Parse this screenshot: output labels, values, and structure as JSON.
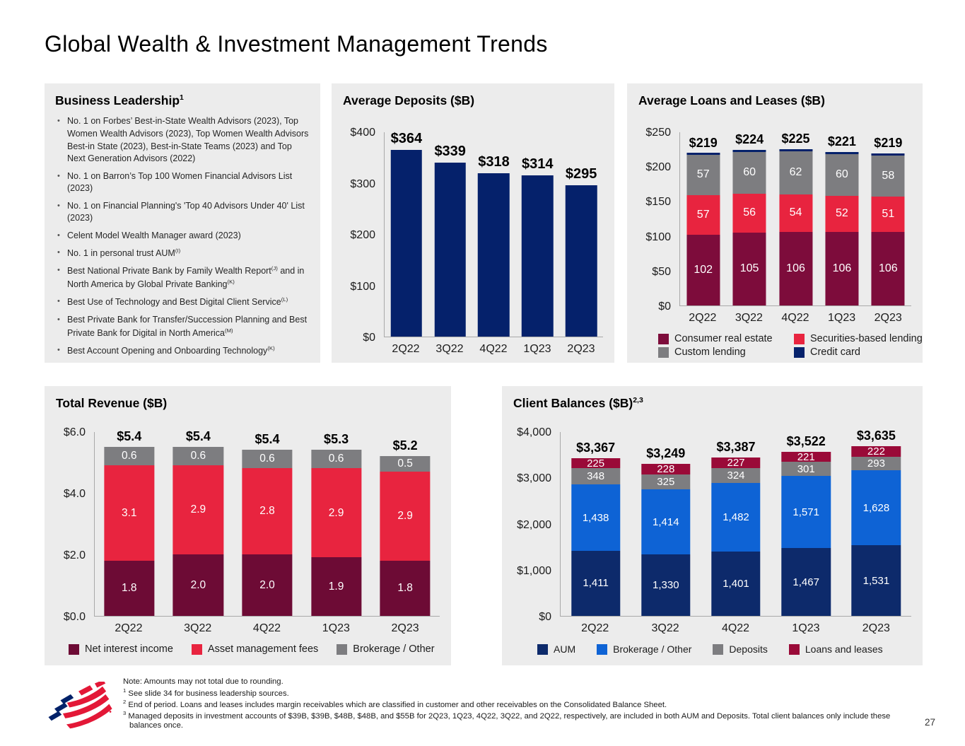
{
  "page": {
    "title": "Global Wealth & Investment Management Trends",
    "page_number": "27",
    "logo": "bank-of-america-flag-logo"
  },
  "colors": {
    "navy": "#05216b",
    "navy_aum": "#0d2a6b",
    "blue": "#0e63d5",
    "red": "#e8243f",
    "maroon": "#7d0c3b",
    "maroon_dark": "#6d0b35",
    "maroon_bright": "#9a0a38",
    "gray": "#7d7d80",
    "logo_red": "#e31837",
    "logo_blue": "#012169"
  },
  "business_leadership": {
    "title": "Business Leadership^{1}",
    "bullets": [
      "No. 1 on Forbes’ Best-in-State Wealth Advisors (2023), Top Women Wealth Advisors (2023), Top Women Wealth Advisors Best-in State (2023), Best-in-State Teams (2023) and Top Next Generation Advisors (2022)",
      "No. 1 on Barron’s Top 100 Women Financial Advisors List (2023)",
      "No. 1 on Financial Planning's 'Top 40 Advisors Under 40' List (2023)",
      "Celent Model Wealth Manager award (2023)",
      "No. 1 in personal trust AUM^{(I)}",
      "Best National Private Bank by Family Wealth Report^{(J)} and in North America by Global Private Banking^{(K)}",
      "Best Use of Technology and Best Digital Client Service^{(L)}",
      "Best Private Bank for Transfer/Succession Planning and Best Private Bank for Digital in North America^{(M)}",
      "Best Account Opening and Onboarding Technology^{(K)}"
    ]
  },
  "chart_data": [
    {
      "id": "average_deposits",
      "type": "bar",
      "title": "Average Deposits ($B)",
      "categories": [
        "2Q22",
        "3Q22",
        "4Q22",
        "1Q23",
        "2Q23"
      ],
      "values": [
        364,
        339,
        318,
        314,
        295
      ],
      "value_labels": [
        "$364",
        "$339",
        "$318",
        "$314",
        "$295"
      ],
      "color": "navy",
      "ylim": [
        0,
        400
      ],
      "yticks": [
        {
          "v": 0,
          "t": "$0"
        },
        {
          "v": 100,
          "t": "$100"
        },
        {
          "v": 200,
          "t": "$200"
        },
        {
          "v": 300,
          "t": "$300"
        },
        {
          "v": 400,
          "t": "$400"
        }
      ],
      "grid": false,
      "legend_position": "none"
    },
    {
      "id": "average_loans",
      "type": "stacked-bar",
      "title": "Average Loans and Leases ($B)",
      "categories": [
        "2Q22",
        "3Q22",
        "4Q22",
        "1Q23",
        "2Q23"
      ],
      "totals": [
        "$219",
        "$224",
        "$225",
        "$221",
        "$219"
      ],
      "series": [
        {
          "name": "Consumer real estate",
          "color": "maroon",
          "values": [
            102,
            105,
            106,
            106,
            106
          ],
          "labels": [
            "102",
            "105",
            "106",
            "106",
            "106"
          ]
        },
        {
          "name": "Securities-based lending",
          "color": "red",
          "values": [
            57,
            56,
            54,
            52,
            51
          ],
          "labels": [
            "57",
            "56",
            "54",
            "52",
            "51"
          ]
        },
        {
          "name": "Custom lending",
          "color": "gray",
          "values": [
            57,
            60,
            62,
            60,
            58
          ],
          "labels": [
            "57",
            "60",
            "62",
            "60",
            "58"
          ]
        },
        {
          "name": "Credit card",
          "color": "navy",
          "values": [
            3,
            3,
            3,
            3,
            4
          ]
        }
      ],
      "ylim": [
        0,
        250
      ],
      "yticks": [
        {
          "v": 0,
          "t": "$0"
        },
        {
          "v": 50,
          "t": "$50"
        },
        {
          "v": 100,
          "t": "$100"
        },
        {
          "v": 150,
          "t": "$150"
        },
        {
          "v": 200,
          "t": "$200"
        },
        {
          "v": 250,
          "t": "$250"
        }
      ],
      "grid": false,
      "legend_position": "bottom-grid"
    },
    {
      "id": "total_revenue",
      "type": "stacked-bar",
      "title": "Total Revenue ($B)",
      "categories": [
        "2Q22",
        "3Q22",
        "4Q22",
        "1Q23",
        "2Q23"
      ],
      "totals": [
        "$5.4",
        "$5.4",
        "$5.4",
        "$5.3",
        "$5.2"
      ],
      "series": [
        {
          "name": "Net interest income",
          "color": "maroon_dark",
          "values": [
            1.8,
            2.0,
            2.0,
            1.9,
            1.8
          ],
          "labels": [
            "1.8",
            "2.0",
            "2.0",
            "1.9",
            "1.8"
          ]
        },
        {
          "name": "Asset management fees",
          "color": "red",
          "values": [
            3.1,
            2.9,
            2.8,
            2.9,
            2.9
          ],
          "labels": [
            "3.1",
            "2.9",
            "2.8",
            "2.9",
            "2.9"
          ]
        },
        {
          "name": "Brokerage / Other",
          "color": "gray",
          "values": [
            0.6,
            0.6,
            0.6,
            0.6,
            0.5
          ],
          "labels": [
            "0.6",
            "0.6",
            "0.6",
            "0.6",
            "0.5"
          ]
        }
      ],
      "ylim": [
        0,
        6
      ],
      "yticks": [
        {
          "v": 0,
          "t": "$0.0"
        },
        {
          "v": 2,
          "t": "$2.0"
        },
        {
          "v": 4,
          "t": "$4.0"
        },
        {
          "v": 6,
          "t": "$6.0"
        }
      ],
      "grid": false,
      "legend_position": "bottom-row"
    },
    {
      "id": "client_balances",
      "type": "stacked-bar",
      "title": "Client Balances ($B)^{2,3}",
      "categories": [
        "2Q22",
        "3Q22",
        "4Q22",
        "1Q23",
        "2Q23"
      ],
      "totals": [
        "$3,367",
        "$3,249",
        "$3,387",
        "$3,522",
        "$3,635"
      ],
      "series": [
        {
          "name": "AUM",
          "color": "navy_aum",
          "values": [
            1411,
            1330,
            1401,
            1467,
            1531
          ],
          "labels": [
            "1,411",
            "1,330",
            "1,401",
            "1,467",
            "1,531"
          ]
        },
        {
          "name": "Brokerage / Other",
          "color": "blue",
          "values": [
            1438,
            1414,
            1482,
            1571,
            1628
          ],
          "labels": [
            "1,438",
            "1,414",
            "1,482",
            "1,571",
            "1,628"
          ]
        },
        {
          "name": "Deposits",
          "color": "gray",
          "values": [
            348,
            325,
            324,
            301,
            293
          ],
          "labels": [
            "348",
            "325",
            "324",
            "301",
            "293"
          ]
        },
        {
          "name": "Loans and leases",
          "color": "maroon_bright",
          "values": [
            225,
            228,
            227,
            221,
            222
          ],
          "labels": [
            "225",
            "228",
            "227",
            "221",
            "222"
          ]
        }
      ],
      "ylim": [
        0,
        4000
      ],
      "yticks": [
        {
          "v": 0,
          "t": "$0"
        },
        {
          "v": 1000,
          "t": "$1,000"
        },
        {
          "v": 2000,
          "t": "$2,000"
        },
        {
          "v": 3000,
          "t": "$3,000"
        },
        {
          "v": 4000,
          "t": "$4,000"
        }
      ],
      "grid": false,
      "legend_position": "bottom-row"
    }
  ],
  "footnotes": {
    "lines": [
      "Note: Amounts may not total due to rounding.",
      "^{1} See slide 34 for business leadership sources.",
      "^{2} End of period. Loans and leases includes margin receivables which are classified in customer and other receivables on the Consolidated Balance Sheet.",
      "^{3} Managed deposits in investment accounts of $39B, $39B, $48B, $48B, and $55B for 2Q23, 1Q23, 4Q22, 3Q22, and 2Q22, respectively, are included in both AUM and Deposits. Total client balances only include these balances once."
    ]
  }
}
